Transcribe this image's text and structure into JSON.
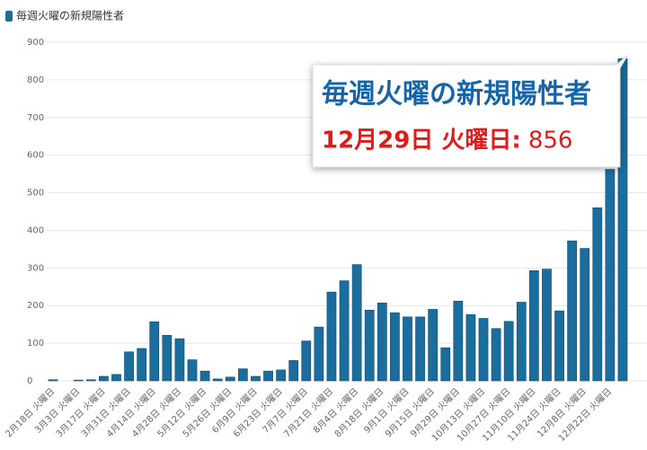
{
  "chart_data": {
    "type": "bar",
    "categories": [
      "2月18日 火曜日",
      null,
      "3月3日 火曜日",
      null,
      "3月17日 火曜日",
      null,
      "3月31日 火曜日",
      null,
      "4月14日 火曜日",
      null,
      "4月28日 火曜日",
      null,
      "5月12日 火曜日",
      null,
      "5月26日 火曜日",
      null,
      "6月9日 火曜日",
      null,
      "6月23日 火曜日",
      null,
      "7月7日 火曜日",
      null,
      "7月21日 火曜日",
      null,
      "8月4日 火曜日",
      null,
      "8月18日 火曜日",
      null,
      "9月1日 火曜日",
      null,
      "9月15日 火曜日",
      null,
      "9月29日 火曜日",
      null,
      "10月13日 火曜日",
      null,
      "10月27日 火曜日",
      null,
      "11月10日 火曜日",
      null,
      "11月24日 火曜日",
      null,
      "12月8日 火曜日",
      null,
      "12月22日 火曜日",
      null
    ],
    "series": [
      {
        "name": "毎週火曜の新規陽性者",
        "color": "#1b6d9e",
        "values": [
          3,
          0,
          2,
          3,
          12,
          17,
          77,
          86,
          157,
          121,
          112,
          56,
          26,
          5,
          10,
          32,
          12,
          26,
          29,
          54,
          106,
          143,
          236,
          266,
          309,
          188,
          207,
          181,
          170,
          170,
          190,
          88,
          212,
          176,
          166,
          139,
          158,
          209,
          293,
          297,
          186,
          372,
          352,
          460,
          562,
          856
        ]
      }
    ],
    "ylim": [
      0,
      900
    ],
    "yticks": [
      0,
      100,
      200,
      300,
      400,
      500,
      600,
      700,
      800,
      900
    ],
    "grid": true,
    "tooltip": {
      "label": "12月29日 火曜日:",
      "index": 45
    }
  }
}
